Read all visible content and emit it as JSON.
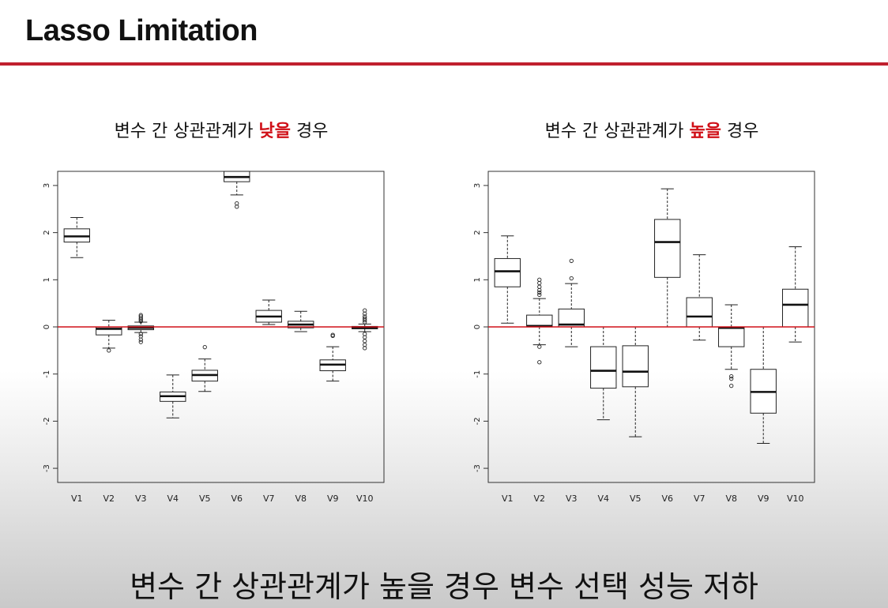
{
  "slide": {
    "title": "Lasso Limitation",
    "caption": "변수 간 상관관계가 높을 경우 변수 선택 성능 저하"
  },
  "panels": [
    {
      "pre": "변수 간 상관관계가 ",
      "highlight": "낮을",
      "post": " 경우"
    },
    {
      "pre": "변수 간 상관관계가 ",
      "highlight": "높을",
      "post": " 경우"
    }
  ],
  "colors": {
    "accent": "#c0202e",
    "highlight": "#d01018",
    "reference_line": "#d01018"
  },
  "chart_data": [
    {
      "type": "box",
      "categories": [
        "V1",
        "V2",
        "V3",
        "V4",
        "V5",
        "V6",
        "V7",
        "V8",
        "V9",
        "V10"
      ],
      "ylim": [
        -3.3,
        3.3
      ],
      "yticks": [
        -3,
        -2,
        -1,
        0,
        1,
        2,
        3
      ],
      "reference_line": 0,
      "boxes": [
        {
          "min": 1.47,
          "q1": 1.8,
          "median": 1.92,
          "q3": 2.08,
          "max": 2.32,
          "outliers": []
        },
        {
          "min": -0.45,
          "q1": -0.17,
          "median": -0.04,
          "q3": 0.0,
          "max": 0.14,
          "outliers": [
            -0.5
          ]
        },
        {
          "min": -0.12,
          "q1": -0.06,
          "median": -0.02,
          "q3": 0.02,
          "max": 0.1,
          "outliers": [
            0.12,
            0.15,
            0.18,
            0.22,
            0.25,
            -0.15,
            -0.2,
            -0.27,
            -0.32
          ]
        },
        {
          "min": -1.93,
          "q1": -1.58,
          "median": -1.47,
          "q3": -1.38,
          "max": -1.02,
          "outliers": []
        },
        {
          "min": -1.37,
          "q1": -1.15,
          "median": -1.02,
          "q3": -0.92,
          "max": -0.68,
          "outliers": [
            -0.43
          ]
        },
        {
          "min": 2.8,
          "q1": 3.08,
          "median": 3.18,
          "q3": 3.3,
          "max": 3.3,
          "outliers": [
            2.62,
            2.55
          ]
        },
        {
          "min": 0.05,
          "q1": 0.1,
          "median": 0.22,
          "q3": 0.35,
          "max": 0.57,
          "outliers": []
        },
        {
          "min": -0.1,
          "q1": -0.02,
          "median": 0.05,
          "q3": 0.12,
          "max": 0.33,
          "outliers": []
        },
        {
          "min": -1.15,
          "q1": -0.93,
          "median": -0.8,
          "q3": -0.7,
          "max": -0.42,
          "outliers": [
            -0.17,
            -0.19
          ]
        },
        {
          "min": -0.1,
          "q1": -0.04,
          "median": -0.02,
          "q3": 0.01,
          "max": 0.06,
          "outliers": [
            0.1,
            0.14,
            0.18,
            0.22,
            0.28,
            0.35,
            -0.15,
            -0.22,
            -0.3,
            -0.38,
            -0.45
          ]
        }
      ]
    },
    {
      "type": "box",
      "categories": [
        "V1",
        "V2",
        "V3",
        "V4",
        "V5",
        "V6",
        "V7",
        "V8",
        "V9",
        "V10"
      ],
      "ylim": [
        -3.3,
        3.3
      ],
      "yticks": [
        -3,
        -2,
        -1,
        0,
        1,
        2,
        3
      ],
      "reference_line": 0,
      "boxes": [
        {
          "min": 0.08,
          "q1": 0.85,
          "median": 1.18,
          "q3": 1.45,
          "max": 1.93,
          "outliers": []
        },
        {
          "min": -0.38,
          "q1": 0.0,
          "median": 0.02,
          "q3": 0.25,
          "max": 0.6,
          "outliers": [
            0.68,
            0.73,
            0.78,
            0.85,
            0.93,
            1.0,
            -0.42,
            -0.75
          ]
        },
        {
          "min": -0.42,
          "q1": 0.0,
          "median": 0.05,
          "q3": 0.38,
          "max": 0.92,
          "outliers": [
            1.03,
            1.4
          ]
        },
        {
          "min": -1.97,
          "q1": -1.3,
          "median": -0.93,
          "q3": -0.42,
          "max": 0.0,
          "outliers": []
        },
        {
          "min": -2.33,
          "q1": -1.27,
          "median": -0.95,
          "q3": -0.4,
          "max": 0.0,
          "outliers": []
        },
        {
          "min": 0.0,
          "q1": 1.05,
          "median": 1.8,
          "q3": 2.28,
          "max": 2.93,
          "outliers": []
        },
        {
          "min": -0.28,
          "q1": 0.0,
          "median": 0.22,
          "q3": 0.62,
          "max": 1.53,
          "outliers": []
        },
        {
          "min": -0.9,
          "q1": -0.42,
          "median": -0.02,
          "q3": 0.0,
          "max": 0.47,
          "outliers": [
            -1.05,
            -1.1,
            -1.25
          ]
        },
        {
          "min": -2.47,
          "q1": -1.83,
          "median": -1.38,
          "q3": -0.9,
          "max": 0.0,
          "outliers": []
        },
        {
          "min": -0.32,
          "q1": 0.0,
          "median": 0.47,
          "q3": 0.8,
          "max": 1.7,
          "outliers": []
        }
      ]
    }
  ]
}
